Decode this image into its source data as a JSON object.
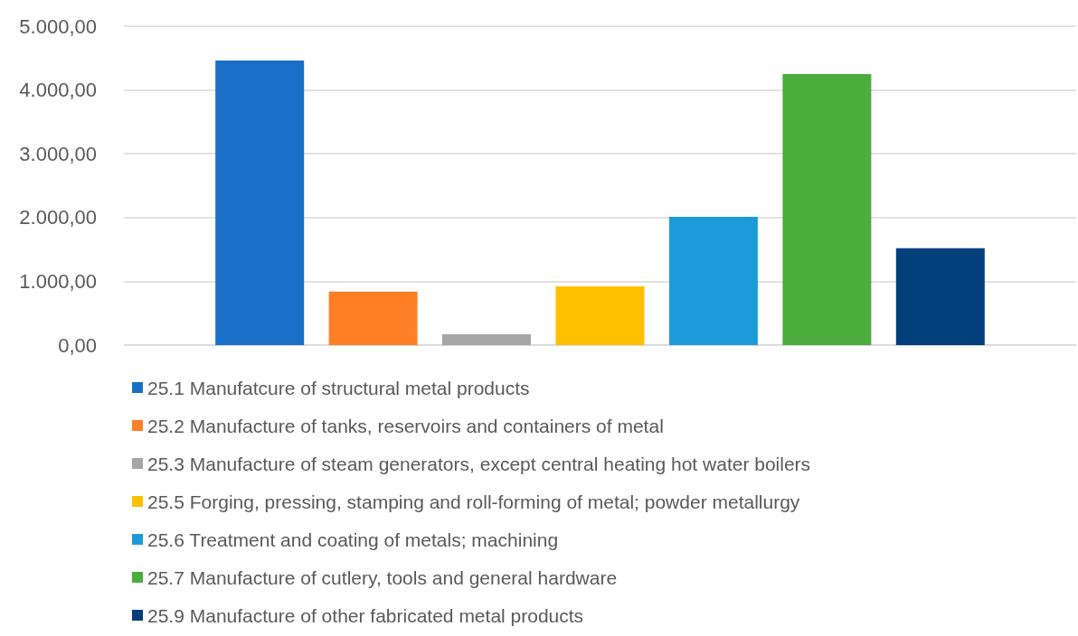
{
  "chart_data": {
    "type": "bar",
    "categories": [
      null
    ],
    "series": [
      {
        "name": "25.1 Manufatcure of structural metal products",
        "color": "#1a70c8",
        "values": [
          4460
        ]
      },
      {
        "name": "25.2 Manufacture of tanks, reservoirs and containers of metal",
        "color": "#fe7f26",
        "values": [
          840
        ]
      },
      {
        "name": "25.3 Manufacture of steam generators, except central heating hot water boilers",
        "color": "#a5a5a5",
        "values": [
          170
        ]
      },
      {
        "name": "25.5 Forging, pressing, stamping and roll-forming of metal; powder metallurgy",
        "color": "#ffc000",
        "values": [
          920
        ]
      },
      {
        "name": "25.6 Treatment and coating of metals; machining",
        "color": "#1d9bd9",
        "values": [
          2010
        ]
      },
      {
        "name": "25.7 Manufacture of cutlery, tools and general hardware",
        "color": "#4aad3c",
        "values": [
          4250
        ]
      },
      {
        "name": "25.9 Manufacture of other fabricated metal products",
        "color": "#033f7b",
        "values": [
          1520
        ]
      }
    ],
    "ylim": [
      0,
      5000
    ],
    "yticks": [
      {
        "value": 0,
        "label": "0,00"
      },
      {
        "value": 1000,
        "label": "1.000,00"
      },
      {
        "value": 2000,
        "label": "2.000,00"
      },
      {
        "value": 3000,
        "label": "3.000,00"
      },
      {
        "value": 4000,
        "label": "4.000,00"
      },
      {
        "value": 5000,
        "label": "5.000,00"
      }
    ],
    "grid": "y",
    "legend": "bottom"
  }
}
